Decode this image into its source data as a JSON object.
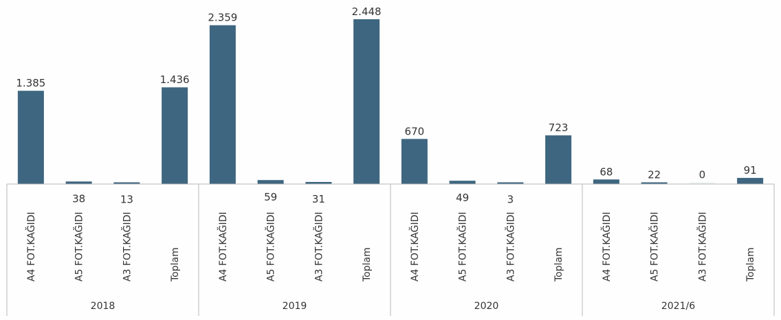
{
  "chart_data": {
    "type": "bar",
    "groups": [
      {
        "name": "2018",
        "categories": [
          "A4 FOT.KAĞIDI",
          "A5 FOT.KAĞIDI",
          "A3 FOT.KAĞIDI",
          "Toplam"
        ],
        "values": [
          1385,
          38,
          13,
          1436
        ],
        "labels": [
          "1.385",
          "38",
          "13",
          "1.436"
        ]
      },
      {
        "name": "2019",
        "categories": [
          "A4 FOT.KAĞIDI",
          "A5 FOT.KAĞIDI",
          "A3 FOT.KAĞIDI",
          "Toplam"
        ],
        "values": [
          2359,
          59,
          31,
          2448
        ],
        "labels": [
          "2.359",
          "59",
          "31",
          "2.448"
        ]
      },
      {
        "name": "2020",
        "categories": [
          "A4 FOT.KAĞIDI",
          "A5 FOT.KAĞIDI",
          "A3 FOT.KAĞIDI",
          "Toplam"
        ],
        "values": [
          670,
          49,
          3,
          723
        ],
        "labels": [
          "670",
          "49",
          "3",
          "723"
        ]
      },
      {
        "name": "2021/6",
        "categories": [
          "A4 FOT.KAĞIDI",
          "A5 FOT.KAĞIDI",
          "A3 FOT.KAĞIDI",
          "Toplam"
        ],
        "values": [
          68,
          22,
          0,
          91
        ],
        "labels": [
          "68",
          "22",
          "0",
          "91"
        ]
      }
    ],
    "ylim": [
      0,
      2448
    ],
    "grid": false,
    "legend": "none",
    "bar_color": "#3e6680"
  }
}
